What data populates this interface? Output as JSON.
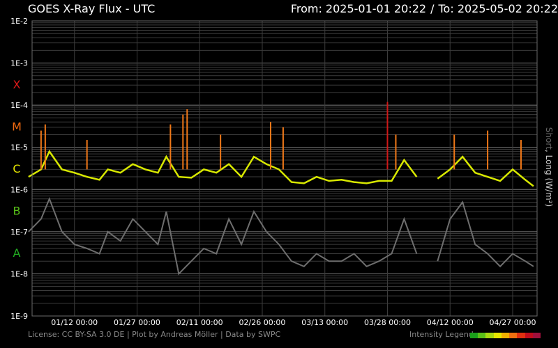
{
  "header": {
    "title": "GOES X-Ray Flux - UTC",
    "from_label": "From: 2025-01-01 20:22",
    "separator": "/",
    "to_label": "To: 2025-05-02 20:22"
  },
  "footer": {
    "credits": "License: CC BY-SA 3.0 DE | Plot by Andreas Möller | Data by SWPC",
    "legend_label": "Intensity Legend"
  },
  "side_label": {
    "short": "Short",
    "rest": ", Long (W/m²)"
  },
  "colors": {
    "background": "#000000",
    "grid": "#5a5a5a",
    "short_channel": "#6e6e6e",
    "long_channel_c": "#d8e800",
    "long_channel_m": "#f07818",
    "long_channel_x": "#d01818",
    "class_x": "#e01a1a",
    "class_m": "#f06a10",
    "class_c": "#e6e600",
    "class_b": "#58c018",
    "class_a": "#22b022",
    "intensity_legend": [
      "#1aa01a",
      "#5ac018",
      "#a8d810",
      "#e6e600",
      "#f0b000",
      "#f07010",
      "#e03010",
      "#c00c1c",
      "#a0103c"
    ]
  },
  "chart_data": {
    "type": "line",
    "title": "GOES X-Ray Flux - UTC",
    "ylabel": "Short, Long (W/m²)",
    "yscale": "log",
    "ylim": [
      1e-09,
      0.01
    ],
    "y_tick_labels": [
      "1E-2",
      "1E-3",
      "1E-4",
      "1E-5",
      "1E-6",
      "1E-7",
      "1E-8",
      "1E-9"
    ],
    "y_tick_values": [
      0.01,
      0.001,
      0.0001,
      1e-05,
      1e-06,
      1e-07,
      1e-08,
      1e-09
    ],
    "flare_classes": [
      {
        "label": "X",
        "value": 0.0001
      },
      {
        "label": "M",
        "value": 1e-05
      },
      {
        "label": "C",
        "value": 1e-06
      },
      {
        "label": "B",
        "value": 1e-07
      },
      {
        "label": "A",
        "value": 1e-08
      }
    ],
    "x_start": "2025-01-01 20:22",
    "x_end": "2025-05-02 20:22",
    "x_tick_labels": [
      "01/12 00:00",
      "01/27 00:00",
      "02/11 00:00",
      "02/26 00:00",
      "03/13 00:00",
      "03/28 00:00",
      "04/12 00:00",
      "04/27 00:00"
    ],
    "x_tick_dates": [
      "2025-01-12",
      "2025-01-27",
      "2025-02-11",
      "2025-02-26",
      "2025-03-13",
      "2025-03-28",
      "2025-04-12",
      "2025-04-27"
    ],
    "grid": true,
    "data_gap": [
      "2025-04-06",
      "2025-04-07"
    ],
    "series": [
      {
        "name": "Long",
        "x": [
          "2025-01-01",
          "2025-01-04",
          "2025-01-06",
          "2025-01-09",
          "2025-01-12",
          "2025-01-15",
          "2025-01-18",
          "2025-01-20",
          "2025-01-23",
          "2025-01-26",
          "2025-01-29",
          "2025-02-01",
          "2025-02-03",
          "2025-02-06",
          "2025-02-09",
          "2025-02-12",
          "2025-02-15",
          "2025-02-18",
          "2025-02-21",
          "2025-02-24",
          "2025-02-27",
          "2025-03-02",
          "2025-03-05",
          "2025-03-08",
          "2025-03-11",
          "2025-03-14",
          "2025-03-17",
          "2025-03-20",
          "2025-03-23",
          "2025-03-26",
          "2025-03-29",
          "2025-04-01",
          "2025-04-04",
          "2025-04-06",
          "2025-04-09",
          "2025-04-12",
          "2025-04-15",
          "2025-04-18",
          "2025-04-21",
          "2025-04-24",
          "2025-04-27",
          "2025-04-30",
          "2025-05-02"
        ],
        "values": [
          2e-06,
          3e-06,
          8e-06,
          3e-06,
          2.5e-06,
          2e-06,
          1.7e-06,
          3e-06,
          2.5e-06,
          4e-06,
          3e-06,
          2.5e-06,
          6e-06,
          2e-06,
          1.9e-06,
          3e-06,
          2.5e-06,
          4e-06,
          2e-06,
          6e-06,
          4e-06,
          3e-06,
          1.5e-06,
          1.4e-06,
          2e-06,
          1.6e-06,
          1.7e-06,
          1.5e-06,
          1.4e-06,
          1.6e-06,
          1.6e-06,
          5e-06,
          2e-06,
          1.6e-06,
          1.8e-06,
          3e-06,
          6e-06,
          2.5e-06,
          2e-06,
          1.6e-06,
          3e-06,
          1.7e-06,
          1.2e-06
        ]
      },
      {
        "name": "Short",
        "x": [
          "2025-01-01",
          "2025-01-04",
          "2025-01-06",
          "2025-01-09",
          "2025-01-12",
          "2025-01-15",
          "2025-01-18",
          "2025-01-20",
          "2025-01-23",
          "2025-01-26",
          "2025-01-29",
          "2025-02-01",
          "2025-02-03",
          "2025-02-06",
          "2025-02-09",
          "2025-02-12",
          "2025-02-15",
          "2025-02-18",
          "2025-02-21",
          "2025-02-24",
          "2025-02-27",
          "2025-03-02",
          "2025-03-05",
          "2025-03-08",
          "2025-03-11",
          "2025-03-14",
          "2025-03-17",
          "2025-03-20",
          "2025-03-23",
          "2025-03-26",
          "2025-03-29",
          "2025-04-01",
          "2025-04-04",
          "2025-04-06",
          "2025-04-09",
          "2025-04-12",
          "2025-04-15",
          "2025-04-18",
          "2025-04-21",
          "2025-04-24",
          "2025-04-27",
          "2025-04-30",
          "2025-05-02"
        ],
        "values": [
          1e-07,
          2e-07,
          6e-07,
          1e-07,
          5e-08,
          4e-08,
          3e-08,
          1e-07,
          6e-08,
          2e-07,
          1e-07,
          5e-08,
          3e-07,
          1e-08,
          2e-08,
          4e-08,
          3e-08,
          2e-07,
          5e-08,
          3e-07,
          1e-07,
          5e-08,
          2e-08,
          1.5e-08,
          3e-08,
          2e-08,
          2e-08,
          3e-08,
          1.5e-08,
          2e-08,
          3e-08,
          2e-07,
          3e-08,
          2e-08,
          2e-08,
          2e-07,
          5e-07,
          5e-08,
          3e-08,
          1.5e-08,
          3e-08,
          2e-08,
          1.5e-08
        ]
      }
    ],
    "peaks": [
      {
        "x": "2025-01-04",
        "value": 2.5e-05
      },
      {
        "x": "2025-01-05",
        "value": 3.5e-05
      },
      {
        "x": "2025-01-15",
        "value": 1.5e-05
      },
      {
        "x": "2025-02-04",
        "value": 3.5e-05
      },
      {
        "x": "2025-02-07",
        "value": 6e-05
      },
      {
        "x": "2025-02-08",
        "value": 8e-05
      },
      {
        "x": "2025-02-16",
        "value": 2e-05
      },
      {
        "x": "2025-02-28",
        "value": 4e-05
      },
      {
        "x": "2025-03-03",
        "value": 3e-05
      },
      {
        "x": "2025-03-28",
        "value": 0.00012
      },
      {
        "x": "2025-03-30",
        "value": 2e-05
      },
      {
        "x": "2025-04-13",
        "value": 2e-05
      },
      {
        "x": "2025-04-21",
        "value": 2.5e-05
      },
      {
        "x": "2025-04-29",
        "value": 1.5e-05
      }
    ]
  }
}
